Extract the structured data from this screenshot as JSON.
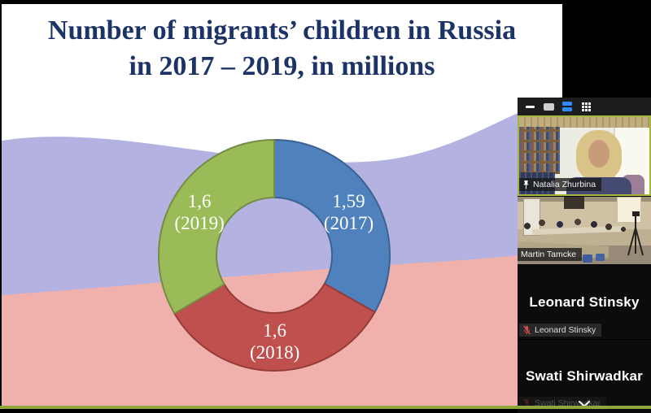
{
  "slide": {
    "title_lines": [
      "Number of migrants’ children in Russia",
      "in 2017 – 2019, in millions"
    ],
    "title_color": "#1c3366"
  },
  "chart_data": {
    "type": "pie",
    "subtype": "donut",
    "title": "Number of migrants' children in Russia in 2017 - 2019, in millions",
    "unit": "millions",
    "direction": "clockwise",
    "start_angle_deg": 0,
    "label_color": "#ffffff",
    "slices": [
      {
        "year": "2017",
        "value": 1.59,
        "value_label": "1,59",
        "color": "#4f81bd",
        "border": "#3a6293"
      },
      {
        "year": "2018",
        "value": 1.6,
        "value_label": "1,6",
        "color": "#c0504d",
        "border": "#953c39"
      },
      {
        "year": "2019",
        "value": 1.6,
        "value_label": "1,6",
        "color": "#9bbb59",
        "border": "#748c43"
      }
    ]
  },
  "flag_colors": {
    "white": "#ffffff",
    "blue": "#b3b2e0",
    "red": "#f0b1ad"
  },
  "share_border_color": "#8fa63d",
  "meeting_panel": {
    "toolbar": {
      "icons": [
        "minimize-icon",
        "speaker-view-icon",
        "strip-view-icon",
        "gallery-view-icon"
      ],
      "active_icon": "strip-view-icon",
      "active_color": "#2d8cff"
    },
    "active_speaker_border": "#a6b63e",
    "participants": [
      {
        "name": "Natalia Zhurbina",
        "type": "video",
        "pinned": true,
        "active_speaker": true
      },
      {
        "name": "Martin Tamcke",
        "type": "video",
        "pinned": false,
        "active_speaker": false
      },
      {
        "name": "Leonard Stinsky",
        "type": "name-tile",
        "muted": true,
        "bottom_label": "Leonard Stinsky"
      },
      {
        "name": "Swati Shirwadkar",
        "type": "name-tile",
        "muted": true,
        "bottom_label": "Swati Shirwadkar"
      }
    ],
    "scroll_more_indicator": "chevron-down"
  }
}
